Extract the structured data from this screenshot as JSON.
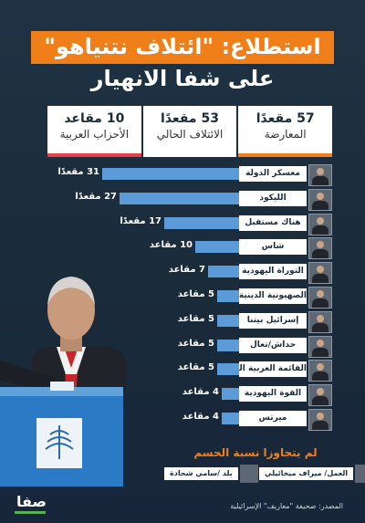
{
  "title": "استطلاع: \"ائتلاف نتنياهو\"",
  "subtitle": "على شفا الانهيار",
  "summary": [
    {
      "seats": "57 مقعدًا",
      "label": "المعارضة",
      "color": "#f07f1a"
    },
    {
      "seats": "53 مقعدًا",
      "label": "الائتلاف الحالي",
      "color": "#ffffff"
    },
    {
      "seats": "10 مقاعد",
      "label": "الأحزاب العربية",
      "color": "#e8404a"
    }
  ],
  "chart_data": {
    "type": "bar",
    "orientation": "horizontal",
    "categories": [
      "معسكر الدولة",
      "الليكود",
      "هناك مستقبل",
      "شاس",
      "التوراة اليهودية",
      "الصهيونية الدينية",
      "إسرائيل بيتنا",
      "حداش/تعال",
      "القائمة العربية الموحدة",
      "القوة اليهودية",
      "ميرتس"
    ],
    "values": [
      31,
      27,
      17,
      10,
      7,
      5,
      5,
      5,
      5,
      4,
      4
    ],
    "value_labels": [
      "31 مقعدًا",
      "27 مقعدًا",
      "17 مقعدًا",
      "10 مقاعد",
      "7 مقاعد",
      "5 مقاعد",
      "5 مقاعد",
      "5 مقاعد",
      "5 مقاعد",
      "4 مقاعد",
      "4 مقاعد"
    ],
    "bar_color": "#5a9bd8",
    "xlim": [
      0,
      31
    ]
  },
  "threshold": {
    "title": "لم يتجاوزا نسبة الحسم",
    "parties": [
      "العمل/ ميراف ميخائيلي",
      "بلد /سامي شحادة"
    ]
  },
  "footer": {
    "source": "المصدر: صحيفة \"معاريف\" الإسرائيلية",
    "logo_text": "صفا"
  }
}
